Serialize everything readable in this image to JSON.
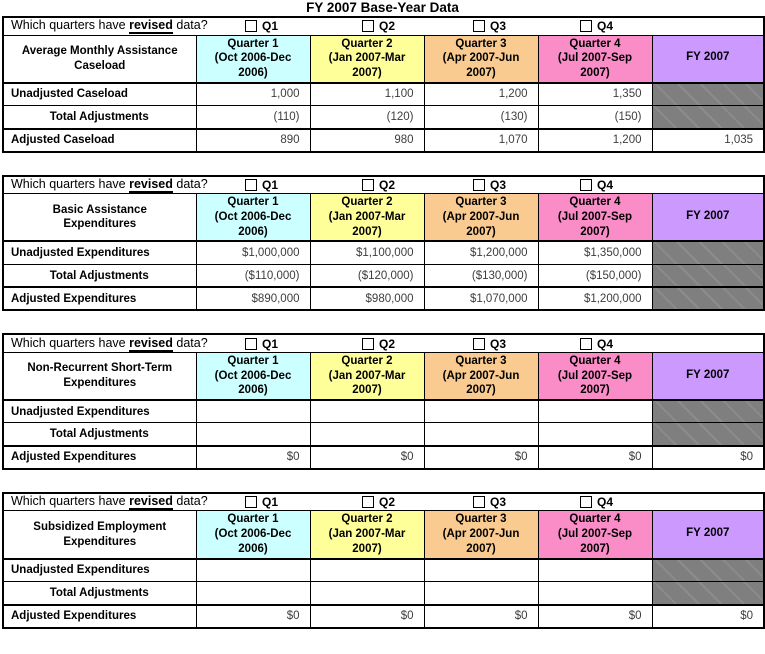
{
  "page_title": "FY 2007 Base-Year Data",
  "question": {
    "prefix": "Which quarters have ",
    "emphasis": "revised",
    "suffix": " data?",
    "checkboxes": [
      {
        "label": "Q1",
        "checked": false
      },
      {
        "label": "Q2",
        "checked": false
      },
      {
        "label": "Q3",
        "checked": false
      },
      {
        "label": "Q4",
        "checked": false
      }
    ]
  },
  "columns": [
    {
      "title": "Quarter 1",
      "subtitle": "(Oct 2006-Dec 2006)",
      "color": "#CCFFFF"
    },
    {
      "title": "Quarter 2",
      "subtitle": "(Jan 2007-Mar 2007)",
      "color": "#FFFF99"
    },
    {
      "title": "Quarter 3",
      "subtitle": "(Apr 2007-Jun 2007)",
      "color": "#FACB90"
    },
    {
      "title": "Quarter 4",
      "subtitle": "(Jul 2007-Sep 2007)",
      "color": "#FA8CC8"
    }
  ],
  "fy_column_label": "FY 2007",
  "colors": {
    "fy_header_purple": "#CC99FF",
    "blocked_cell_gray": "#7F7F7F",
    "border_black": "#000000"
  },
  "tables": [
    {
      "name": "Average Monthly Assistance Caseload",
      "rows": [
        {
          "label": "Unadjusted Caseload",
          "values": [
            "1,000",
            "1,100",
            "1,200",
            "1,350"
          ],
          "fy": null
        },
        {
          "label": "Total Adjustments",
          "values": [
            "(110)",
            "(120)",
            "(130)",
            "(150)"
          ],
          "fy": null
        },
        {
          "label": "Adjusted Caseload",
          "values": [
            "890",
            "980",
            "1,070",
            "1,200"
          ],
          "fy": "1,035"
        }
      ]
    },
    {
      "name": "Basic Assistance Expenditures",
      "rows": [
        {
          "label": "Unadjusted Expenditures",
          "values": [
            "$1,000,000",
            "$1,100,000",
            "$1,200,000",
            "$1,350,000"
          ],
          "fy": null
        },
        {
          "label": "Total Adjustments",
          "values": [
            "($110,000)",
            "($120,000)",
            "($130,000)",
            "($150,000)"
          ],
          "fy": null
        },
        {
          "label": "Adjusted Expenditures",
          "values": [
            "$890,000",
            "$980,000",
            "$1,070,000",
            "$1,200,000"
          ],
          "fy": null
        }
      ]
    },
    {
      "name": "Non-Recurrent Short-Term Expenditures",
      "rows": [
        {
          "label": "Unadjusted Expenditures",
          "values": [
            "",
            "",
            "",
            ""
          ],
          "fy": null
        },
        {
          "label": "Total Adjustments",
          "values": [
            "",
            "",
            "",
            ""
          ],
          "fy": null
        },
        {
          "label": "Adjusted Expenditures",
          "values": [
            "$0",
            "$0",
            "$0",
            "$0"
          ],
          "fy": "$0"
        }
      ]
    },
    {
      "name": "Subsidized Employment Expenditures",
      "rows": [
        {
          "label": "Unadjusted Expenditures",
          "values": [
            "",
            "",
            "",
            ""
          ],
          "fy": null
        },
        {
          "label": "Total Adjustments",
          "values": [
            "",
            "",
            "",
            ""
          ],
          "fy": null
        },
        {
          "label": "Adjusted Expenditures",
          "values": [
            "$0",
            "$0",
            "$0",
            "$0"
          ],
          "fy": "$0"
        }
      ]
    }
  ]
}
